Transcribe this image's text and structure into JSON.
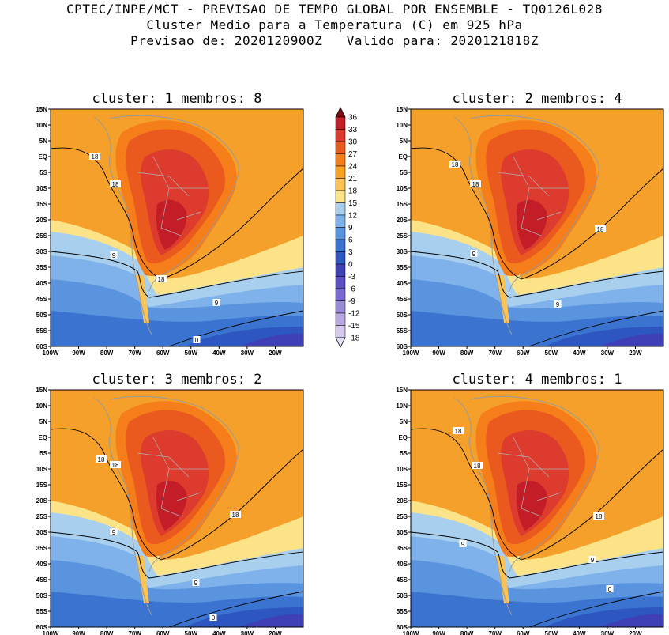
{
  "title": {
    "line1": "CPTEC/INPE/MCT - PREVISAO DE TEMPO GLOBAL POR ENSEMBLE - TQ0126L028",
    "line2": "Cluster Medio para a Temperatura (C) em 925 hPa",
    "line3": "Previsao de: 2020120900Z   Valido para: 2020121818Z"
  },
  "lat_labels": [
    "15N",
    "10N",
    "5N",
    "EQ",
    "5S",
    "10S",
    "15S",
    "20S",
    "25S",
    "30S",
    "35S",
    "40S",
    "45S",
    "50S",
    "55S",
    "60S"
  ],
  "lon_labels": [
    "100W",
    "90W",
    "80W",
    "70W",
    "60W",
    "50W",
    "40W",
    "30W",
    "20W"
  ],
  "panels": [
    {
      "title": "cluster: 1   membros: 8",
      "contour_labels": [
        "18",
        "18",
        "18",
        "9",
        "9",
        "0"
      ]
    },
    {
      "title": "cluster: 2   membros: 4",
      "contour_labels": [
        "18",
        "18",
        "18",
        "9",
        "9"
      ]
    },
    {
      "title": "cluster: 3   membros: 2",
      "contour_labels": [
        "18",
        "18",
        "18",
        "9",
        "9",
        "0"
      ]
    },
    {
      "title": "cluster: 4   membros: 1",
      "contour_labels": [
        "18",
        "18",
        "18",
        "9",
        "9",
        "0"
      ]
    }
  ],
  "colorbar": {
    "levels": [
      "36",
      "33",
      "30",
      "27",
      "24",
      "21",
      "18",
      "15",
      "12",
      "9",
      "6",
      "3",
      "0",
      "-3",
      "-6",
      "-9",
      "-12",
      "-15",
      "-18"
    ],
    "colors": [
      "#c31e27",
      "#dc3b2e",
      "#ea5a1e",
      "#f57d1a",
      "#f8a123",
      "#fbc254",
      "#fde387",
      "#a9cfee",
      "#7fb2ea",
      "#5a94de",
      "#3b74d0",
      "#2d56c0",
      "#3f3fb6",
      "#5a52c4",
      "#7a6bd2",
      "#998ad8",
      "#b8a8e2",
      "#d5c9ee"
    ],
    "top_color": "#7c0d16",
    "bottom_color": "#e5defa"
  }
}
